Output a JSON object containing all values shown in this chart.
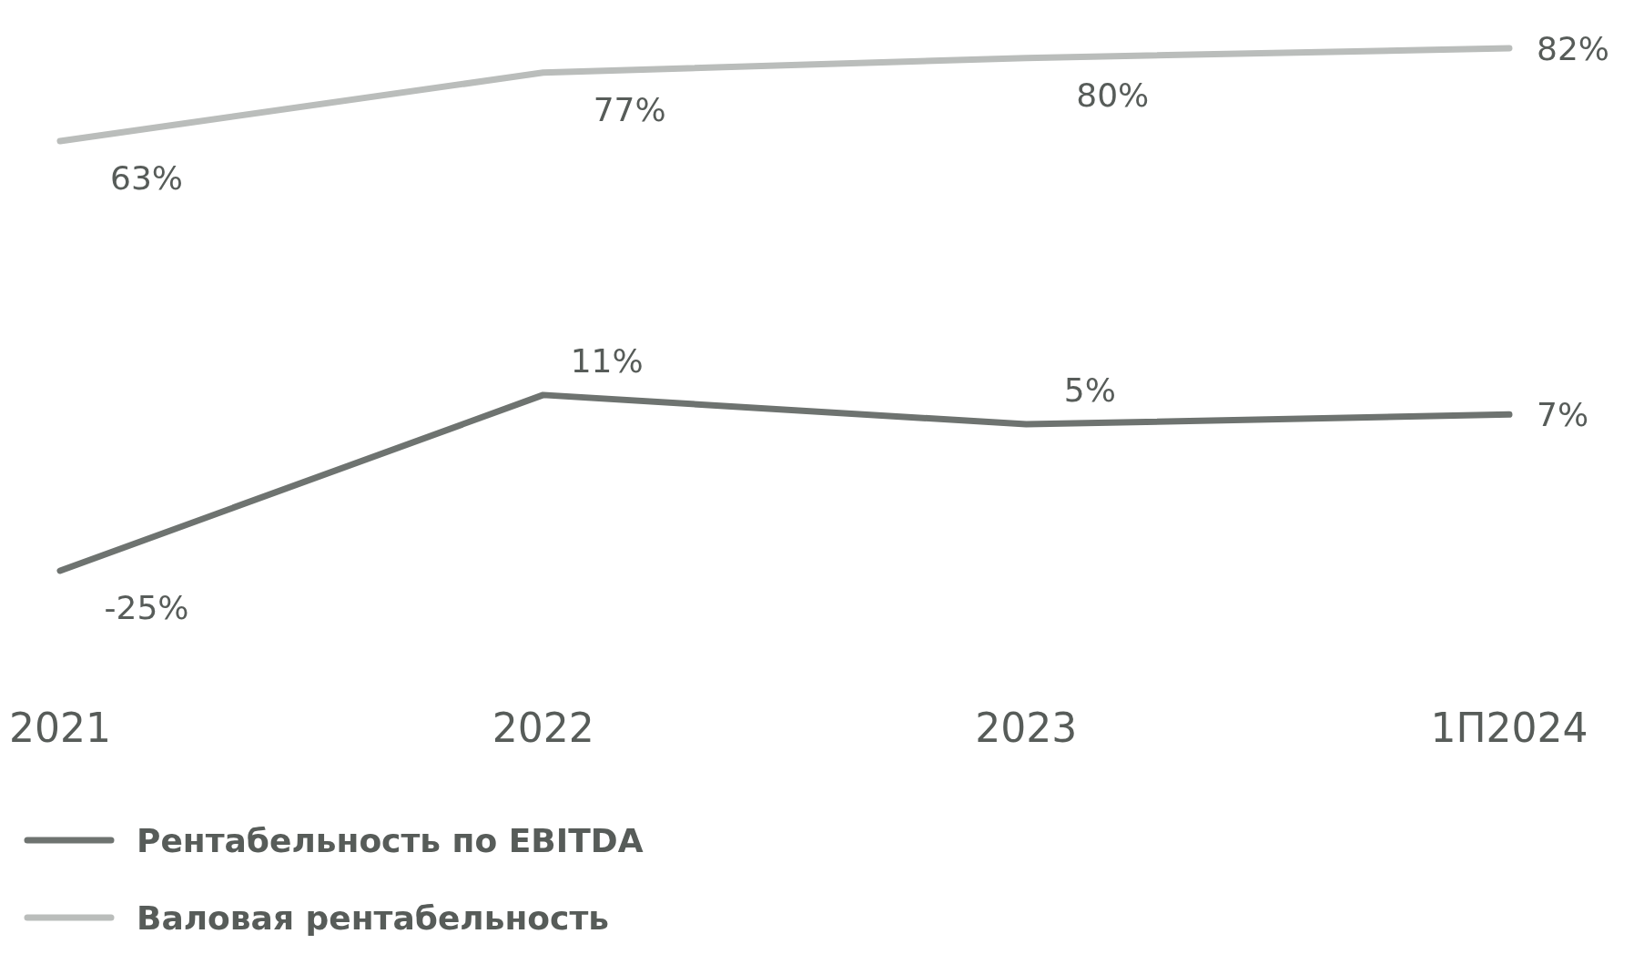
{
  "chart_data": {
    "type": "line",
    "categories": [
      "2021",
      "2022",
      "2023",
      "1П2024"
    ],
    "series": [
      {
        "name": "Рентабельность по EBITDA",
        "color": "#6e7370",
        "values": [
          -25,
          11,
          5,
          7
        ],
        "value_labels": [
          "-25%",
          "11%",
          "5%",
          "7%"
        ]
      },
      {
        "name": "Валовая рентабельность",
        "color": "#babdbb",
        "values": [
          63,
          77,
          80,
          82
        ],
        "value_labels": [
          "63%",
          "77%",
          "80%",
          "82%"
        ]
      }
    ],
    "legend": "bottom left",
    "marker": "none",
    "line_style": "solid"
  }
}
